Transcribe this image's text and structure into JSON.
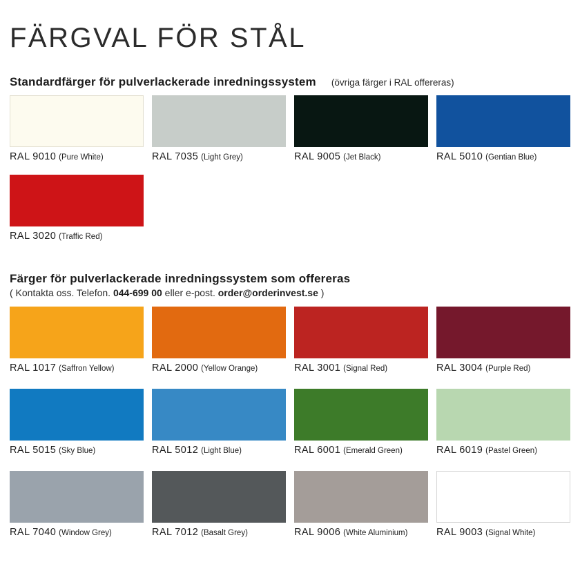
{
  "page": {
    "title": "FÄRGVAL FÖR STÅL",
    "background_color": "#ffffff",
    "text_color": "#231f20"
  },
  "sections": [
    {
      "heading": "Standardfärger för pulverlackerade inredningssystem",
      "note": "(övriga färger i RAL offereras)",
      "swatches": [
        {
          "code": "RAL 9010",
          "name": "(Pure White)",
          "hex": "#fdfbef",
          "border": "#e2dfd0"
        },
        {
          "code": "RAL 7035",
          "name": "(Light Grey)",
          "hex": "#c7cdc9"
        },
        {
          "code": "RAL 9005",
          "name": "(Jet Black)",
          "hex": "#081712"
        },
        {
          "code": "RAL 5010",
          "name": "(Gentian Blue)",
          "hex": "#11529e"
        },
        {
          "code": "RAL 3020",
          "name": "(Traffic Red)",
          "hex": "#ce1417"
        }
      ]
    },
    {
      "heading": "Färger för pulverlackerade inredningssystem som offereras",
      "contact": {
        "prefix": "( Kontakta oss. Telefon. ",
        "phone": "044-699 00",
        "middle": " eller e-post. ",
        "email": "order@orderinvest.se",
        "suffix": " )"
      },
      "swatches": [
        {
          "code": "RAL 1017",
          "name": "(Saffron Yellow)",
          "hex": "#f6a41a"
        },
        {
          "code": "RAL 2000",
          "name": "(Yellow Orange)",
          "hex": "#e26a10"
        },
        {
          "code": "RAL 3001",
          "name": "(Signal Red)",
          "hex": "#bc2421"
        },
        {
          "code": "RAL 3004",
          "name": "(Purple Red)",
          "hex": "#75182c"
        },
        {
          "code": "RAL 5015",
          "name": "(Sky Blue)",
          "hex": "#117ac1"
        },
        {
          "code": "RAL 5012",
          "name": "(Light Blue)",
          "hex": "#3789c5"
        },
        {
          "code": "RAL 6001",
          "name": "(Emerald Green)",
          "hex": "#3d7b29"
        },
        {
          "code": "RAL 6019",
          "name": "(Pastel Green)",
          "hex": "#b8d7b0"
        },
        {
          "code": "RAL 7040",
          "name": "(Window Grey)",
          "hex": "#9aa3ac"
        },
        {
          "code": "RAL 7012",
          "name": "(Basalt Grey)",
          "hex": "#54585a"
        },
        {
          "code": "RAL 9006",
          "name": "(White Aluminium)",
          "hex": "#a49d99"
        },
        {
          "code": "RAL 9003",
          "name": "(Signal White)",
          "hex": "#ffffff",
          "border": "#d5d5d5"
        }
      ]
    }
  ]
}
